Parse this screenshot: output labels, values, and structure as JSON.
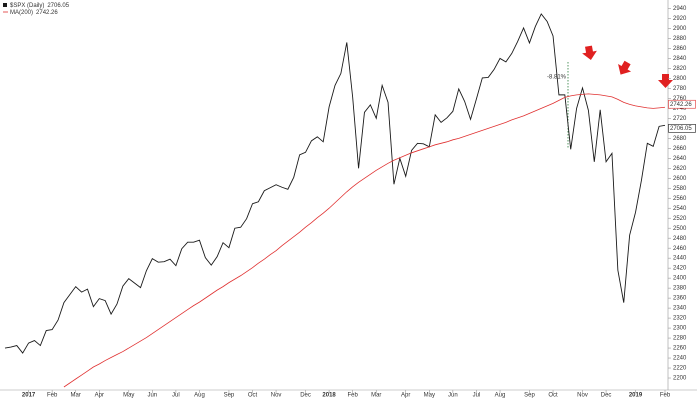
{
  "chart_data": {
    "type": "line",
    "annotation": "-8.81%",
    "categories": [
      null,
      null,
      null,
      null,
      "2017",
      null,
      null,
      null,
      "Feb",
      null,
      null,
      null,
      "Mar",
      null,
      null,
      null,
      "Apr",
      null,
      null,
      null,
      null,
      "May",
      null,
      null,
      null,
      "Jun",
      null,
      null,
      null,
      "Jul",
      null,
      null,
      null,
      "Aug",
      null,
      null,
      null,
      null,
      "Sep",
      null,
      null,
      null,
      "Oct",
      null,
      null,
      null,
      "Nov",
      null,
      null,
      null,
      null,
      "Dec",
      null,
      null,
      null,
      "2018",
      null,
      null,
      null,
      "Feb",
      null,
      null,
      null,
      "Mar",
      null,
      null,
      null,
      null,
      "Apr",
      null,
      null,
      null,
      "May",
      null,
      null,
      null,
      "Jun",
      null,
      null,
      null,
      "Jul",
      null,
      null,
      null,
      "Aug",
      null,
      null,
      null,
      null,
      "Sep",
      null,
      null,
      null,
      "Oct",
      null,
      null,
      null,
      null,
      "Nov",
      null,
      null,
      null,
      "Dec",
      null,
      null,
      null,
      null,
      "2019",
      null,
      null,
      null,
      null,
      "Feb"
    ],
    "series": [
      {
        "name": "$SPX (Daily)",
        "last_label": "2706.05",
        "color": "#1a1a1a",
        "values": [
          2260,
          2262,
          2265,
          2250,
          2270,
          2275,
          2265,
          2295,
          2297,
          2316,
          2351,
          2367,
          2383,
          2372,
          2378,
          2343,
          2359,
          2355,
          2328,
          2348,
          2384,
          2399,
          2390,
          2381,
          2415,
          2439,
          2432,
          2433,
          2438,
          2425,
          2459,
          2472,
          2472,
          2476,
          2441,
          2426,
          2443,
          2471,
          2461,
          2500,
          2502,
          2519,
          2549,
          2553,
          2575,
          2581,
          2587,
          2582,
          2578,
          2602,
          2647,
          2652,
          2675,
          2683,
          2673,
          2743,
          2786,
          2810,
          2872,
          2762,
          2620,
          2732,
          2747,
          2720,
          2786,
          2752,
          2588,
          2640,
          2604,
          2656,
          2670,
          2669,
          2663,
          2727,
          2712,
          2721,
          2734,
          2779,
          2754,
          2718,
          2759,
          2801,
          2802,
          2818,
          2840,
          2833,
          2850,
          2874,
          2901,
          2871,
          2904,
          2929,
          2914,
          2885,
          2767,
          2767,
          2658,
          2740,
          2781,
          2736,
          2633,
          2737,
          2633,
          2650,
          2416,
          2351,
          2486,
          2532,
          2596,
          2670,
          2664,
          2704,
          2706.05
        ]
      },
      {
        "name": "MA(200)",
        "last_label": "2742.26",
        "color": "#e03030",
        "values": [
          null,
          null,
          null,
          null,
          null,
          null,
          null,
          null,
          null,
          null,
          2182,
          2190,
          2198,
          2206,
          2214,
          2222,
          2228,
          2235,
          2241,
          2247,
          2253,
          2260,
          2267,
          2274,
          2281,
          2289,
          2297,
          2305,
          2313,
          2321,
          2329,
          2337,
          2345,
          2352,
          2360,
          2368,
          2376,
          2383,
          2391,
          2398,
          2405,
          2413,
          2421,
          2430,
          2438,
          2447,
          2455,
          2465,
          2474,
          2483,
          2492,
          2502,
          2511,
          2521,
          2530,
          2540,
          2551,
          2562,
          2573,
          2583,
          2592,
          2600,
          2608,
          2616,
          2623,
          2630,
          2636,
          2641,
          2646,
          2651,
          2655,
          2659,
          2663,
          2667,
          2670,
          2673,
          2677,
          2680,
          2684,
          2688,
          2692,
          2696,
          2700,
          2704,
          2708,
          2712,
          2717,
          2721,
          2725,
          2730,
          2735,
          2740,
          2745,
          2750,
          2756,
          2762,
          2765,
          2767,
          2768,
          2769,
          2768,
          2767,
          2765,
          2763,
          2758,
          2752,
          2748,
          2745,
          2743,
          2741,
          2740,
          2741,
          2742.26
        ]
      }
    ],
    "ylim": [
      2180,
      2945
    ],
    "yticks": [
      2200,
      2220,
      2240,
      2260,
      2280,
      2300,
      2320,
      2340,
      2360,
      2380,
      2400,
      2420,
      2440,
      2460,
      2480,
      2500,
      2520,
      2540,
      2560,
      2580,
      2600,
      2620,
      2640,
      2660,
      2680,
      2700,
      2720,
      2740,
      2760,
      2780,
      2800,
      2820,
      2840,
      2860,
      2880,
      2900,
      2920,
      2940
    ]
  }
}
